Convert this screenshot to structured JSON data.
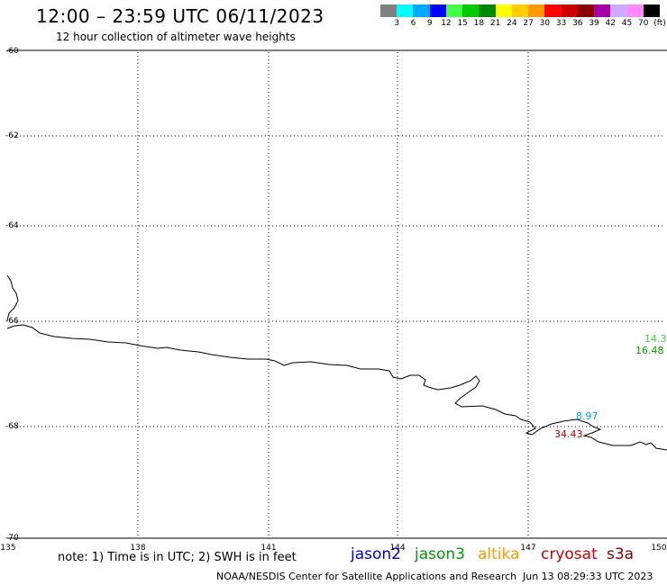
{
  "title": "12:00 – 23:59 UTC 06/11/2023",
  "subtitle": "12 hour collection of altimeter wave heights",
  "color_scale": {
    "colors": [
      "#808080",
      "#00ffff",
      "#00aaff",
      "#0000ff",
      "#44ff44",
      "#00cc00",
      "#008800",
      "#ffff00",
      "#ffcc00",
      "#ff9900",
      "#ff0000",
      "#cc0000",
      "#880000",
      "#aa00aa",
      "#ccaaff",
      "#ff88ff",
      "#000000"
    ],
    "labels": [
      "3",
      "6",
      "9",
      "12",
      "15",
      "18",
      "21",
      "24",
      "27",
      "30",
      "33",
      "36",
      "39",
      "42",
      "45",
      "70",
      "(ft)"
    ]
  },
  "map": {
    "lat_labels": [
      "-60",
      "-62",
      "-64",
      "-66",
      "-68",
      "-70"
    ],
    "lon_labels": [
      "135",
      "138",
      "141",
      "144",
      "147",
      "150"
    ]
  },
  "readings": [
    {
      "text": "14.3",
      "color": "#44cc44"
    },
    {
      "text": "16.48",
      "color": "#00aa00"
    },
    {
      "text": "8.97",
      "color": "#00aadd"
    },
    {
      "text": "34.43",
      "color": "#bb0000"
    }
  ],
  "note": "note: 1) Time is in UTC; 2) SWH is in feet",
  "satellites": [
    {
      "name": "jason2",
      "color": "#0000cc"
    },
    {
      "name": "jason3",
      "color": "#009900"
    },
    {
      "name": "altika",
      "color": "#ff9900"
    },
    {
      "name": "cryosat",
      "color": "#cc0000"
    },
    {
      "name": "s3a",
      "color": "#880000"
    }
  ],
  "credit": "NOAA/NESDIS Center for Satellite Applications and Research",
  "generated": "Jun 13 08:29:33 UTC 2023"
}
